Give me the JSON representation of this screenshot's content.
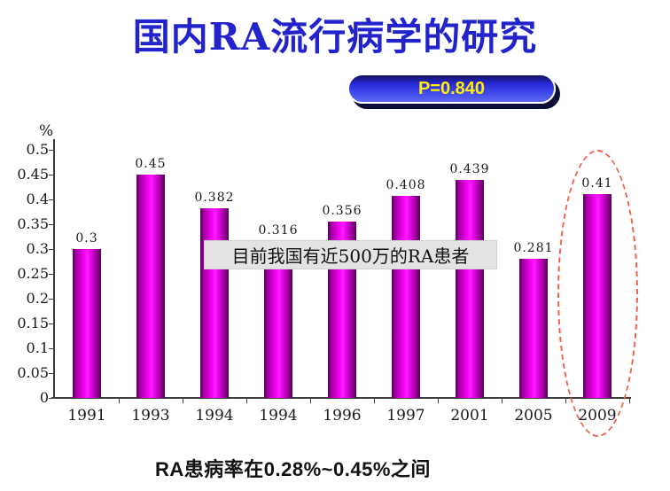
{
  "slide": {
    "title": "国内RA流行病学的研究",
    "badge": {
      "label": "P=0.840",
      "bg_color": "#2828d6",
      "text_color": "#ffef00",
      "shadow_color": "#0c0c38"
    },
    "overlay_note": "目前我国有近500万的RA患者",
    "caption": "RA患病率在0.28%~0.45%之间",
    "highlight": {
      "target_year": "2009",
      "color": "#f0604a"
    }
  },
  "chart_data": {
    "type": "bar",
    "categories": [
      "1991",
      "1993",
      "1994",
      "1994",
      "1996",
      "1997",
      "2001",
      "2005",
      "2009"
    ],
    "values": [
      0.3,
      0.45,
      0.382,
      0.316,
      0.356,
      0.408,
      0.439,
      0.281,
      0.41
    ],
    "value_labels": [
      "0.3",
      "0.45",
      "0.382",
      "0.316",
      "0.356",
      "0.408",
      "0.439",
      "0.281",
      "0.41"
    ],
    "title": "",
    "xlabel": "",
    "ylabel": "%",
    "ylim": [
      0,
      0.5
    ],
    "ytick_step": 0.05,
    "ytick_labels": [
      "0",
      "0.05",
      "0.1",
      "0.15",
      "0.2",
      "0.25",
      "0.3",
      "0.35",
      "0.4",
      "0.45",
      "0.5"
    ],
    "grid": false,
    "legend": null,
    "bar_color_center": "#ff00ff",
    "bar_color_edge": "#5c005c",
    "highlight_index": 8
  }
}
